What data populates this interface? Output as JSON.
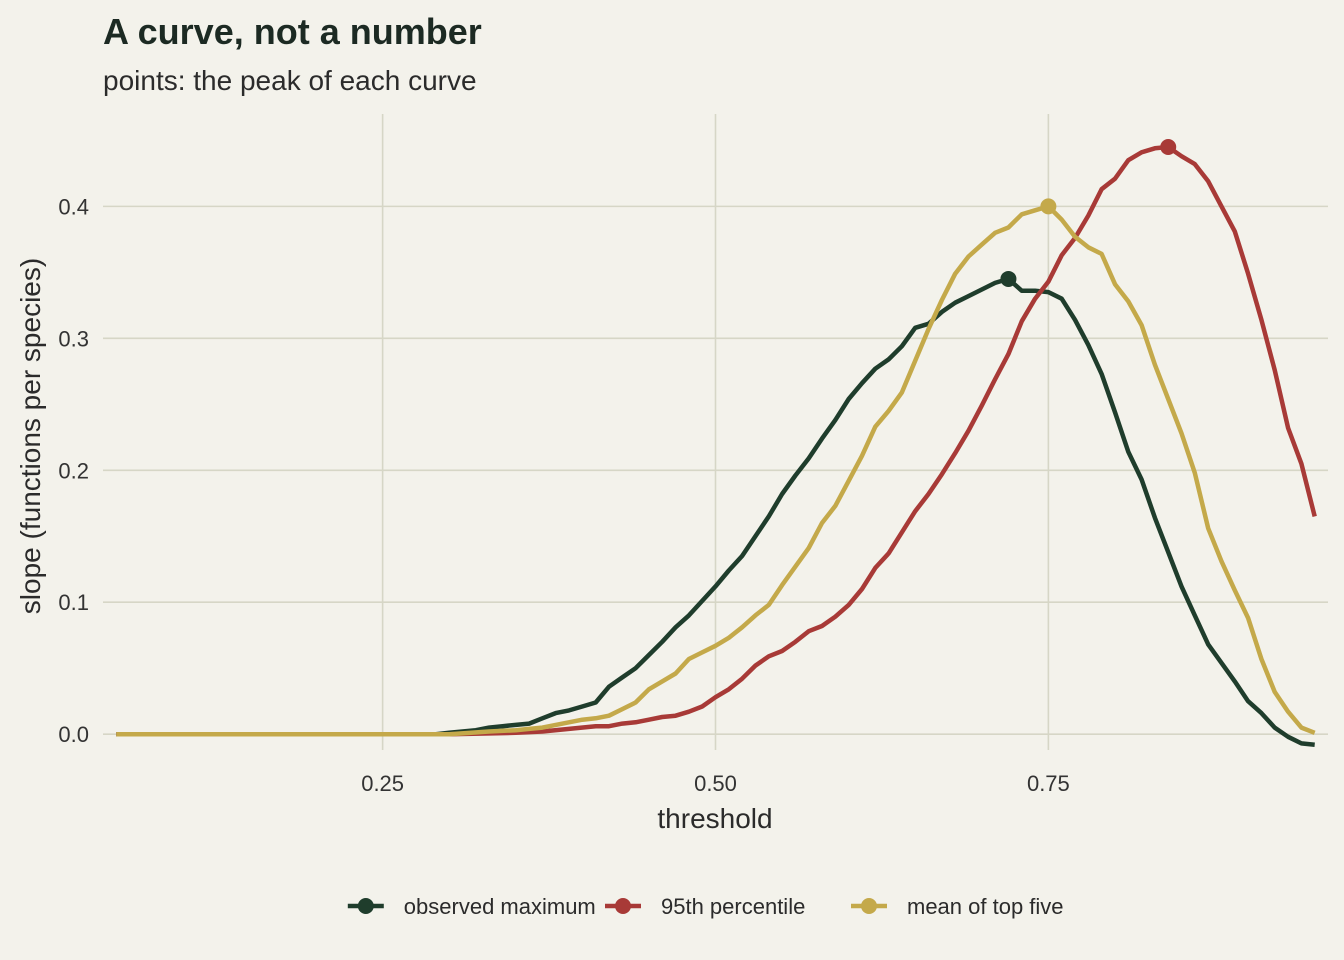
{
  "chart_data": {
    "type": "line",
    "title": "A curve, not a number",
    "subtitle": "points: the peak of each curve",
    "xlabel": "threshold",
    "ylabel": "slope (functions per species)",
    "xlim": [
      0.04,
      0.96
    ],
    "ylim": [
      -0.012,
      0.47
    ],
    "x_ticks": [
      0.25,
      0.5,
      0.75
    ],
    "x_tick_labels": [
      "0.25",
      "0.50",
      "0.75"
    ],
    "y_ticks": [
      0.0,
      0.1,
      0.2,
      0.3,
      0.4
    ],
    "y_tick_labels": [
      "0.0",
      "0.1",
      "0.2",
      "0.3",
      "0.4"
    ],
    "grid": true,
    "legend_position": "bottom",
    "series": [
      {
        "name": "observed maximum",
        "color": "#1f3d2c",
        "peak": [
          0.72,
          0.345
        ],
        "points": [
          [
            0.05,
            0
          ],
          [
            0.29,
            0
          ],
          [
            0.3,
            0.001
          ],
          [
            0.31,
            0.002
          ],
          [
            0.32,
            0.003
          ],
          [
            0.33,
            0.005
          ],
          [
            0.34,
            0.006
          ],
          [
            0.35,
            0.007
          ],
          [
            0.36,
            0.008
          ],
          [
            0.37,
            0.012
          ],
          [
            0.38,
            0.016
          ],
          [
            0.39,
            0.018
          ],
          [
            0.4,
            0.021
          ],
          [
            0.41,
            0.024
          ],
          [
            0.42,
            0.036
          ],
          [
            0.43,
            0.043
          ],
          [
            0.44,
            0.05
          ],
          [
            0.45,
            0.06
          ],
          [
            0.46,
            0.07
          ],
          [
            0.47,
            0.081
          ],
          [
            0.48,
            0.09
          ],
          [
            0.49,
            0.101
          ],
          [
            0.5,
            0.112
          ],
          [
            0.51,
            0.124
          ],
          [
            0.52,
            0.135
          ],
          [
            0.53,
            0.15
          ],
          [
            0.54,
            0.165
          ],
          [
            0.55,
            0.182
          ],
          [
            0.56,
            0.196
          ],
          [
            0.57,
            0.209
          ],
          [
            0.58,
            0.224
          ],
          [
            0.59,
            0.238
          ],
          [
            0.6,
            0.254
          ],
          [
            0.61,
            0.266
          ],
          [
            0.62,
            0.277
          ],
          [
            0.63,
            0.284
          ],
          [
            0.64,
            0.294
          ],
          [
            0.65,
            0.308
          ],
          [
            0.66,
            0.311
          ],
          [
            0.67,
            0.32
          ],
          [
            0.68,
            0.327
          ],
          [
            0.69,
            0.332
          ],
          [
            0.7,
            0.337
          ],
          [
            0.71,
            0.342
          ],
          [
            0.72,
            0.345
          ],
          [
            0.73,
            0.336
          ],
          [
            0.74,
            0.336
          ],
          [
            0.75,
            0.335
          ],
          [
            0.76,
            0.33
          ],
          [
            0.77,
            0.314
          ],
          [
            0.78,
            0.295
          ],
          [
            0.79,
            0.273
          ],
          [
            0.8,
            0.244
          ],
          [
            0.81,
            0.214
          ],
          [
            0.82,
            0.193
          ],
          [
            0.83,
            0.164
          ],
          [
            0.84,
            0.138
          ],
          [
            0.85,
            0.112
          ],
          [
            0.86,
            0.09
          ],
          [
            0.87,
            0.068
          ],
          [
            0.88,
            0.054
          ],
          [
            0.89,
            0.04
          ],
          [
            0.9,
            0.025
          ],
          [
            0.91,
            0.016
          ],
          [
            0.92,
            0.005
          ],
          [
            0.93,
            -0.002
          ],
          [
            0.94,
            -0.007
          ],
          [
            0.95,
            -0.008
          ]
        ]
      },
      {
        "name": "95th percentile",
        "color": "#a83a37",
        "peak": [
          0.84,
          0.445
        ],
        "points": [
          [
            0.05,
            0
          ],
          [
            0.3,
            0
          ],
          [
            0.35,
            0.001
          ],
          [
            0.37,
            0.002
          ],
          [
            0.39,
            0.004
          ],
          [
            0.41,
            0.006
          ],
          [
            0.42,
            0.006
          ],
          [
            0.43,
            0.008
          ],
          [
            0.44,
            0.009
          ],
          [
            0.45,
            0.011
          ],
          [
            0.46,
            0.013
          ],
          [
            0.47,
            0.014
          ],
          [
            0.48,
            0.017
          ],
          [
            0.49,
            0.021
          ],
          [
            0.5,
            0.028
          ],
          [
            0.51,
            0.034
          ],
          [
            0.52,
            0.042
          ],
          [
            0.53,
            0.052
          ],
          [
            0.54,
            0.059
          ],
          [
            0.55,
            0.063
          ],
          [
            0.56,
            0.07
          ],
          [
            0.57,
            0.078
          ],
          [
            0.58,
            0.082
          ],
          [
            0.59,
            0.089
          ],
          [
            0.6,
            0.098
          ],
          [
            0.61,
            0.11
          ],
          [
            0.62,
            0.126
          ],
          [
            0.63,
            0.137
          ],
          [
            0.64,
            0.153
          ],
          [
            0.65,
            0.169
          ],
          [
            0.66,
            0.182
          ],
          [
            0.67,
            0.197
          ],
          [
            0.68,
            0.213
          ],
          [
            0.69,
            0.23
          ],
          [
            0.7,
            0.249
          ],
          [
            0.71,
            0.269
          ],
          [
            0.72,
            0.288
          ],
          [
            0.73,
            0.313
          ],
          [
            0.74,
            0.33
          ],
          [
            0.75,
            0.343
          ],
          [
            0.76,
            0.363
          ],
          [
            0.77,
            0.376
          ],
          [
            0.78,
            0.393
          ],
          [
            0.79,
            0.413
          ],
          [
            0.8,
            0.421
          ],
          [
            0.81,
            0.435
          ],
          [
            0.82,
            0.441
          ],
          [
            0.83,
            0.444
          ],
          [
            0.84,
            0.445
          ],
          [
            0.85,
            0.438
          ],
          [
            0.86,
            0.432
          ],
          [
            0.87,
            0.419
          ],
          [
            0.88,
            0.4
          ],
          [
            0.89,
            0.381
          ],
          [
            0.9,
            0.349
          ],
          [
            0.91,
            0.314
          ],
          [
            0.92,
            0.276
          ],
          [
            0.93,
            0.232
          ],
          [
            0.94,
            0.205
          ],
          [
            0.95,
            0.165
          ]
        ]
      },
      {
        "name": "mean of top five",
        "color": "#c4a94a",
        "peak": [
          0.75,
          0.4
        ],
        "points": [
          [
            0.05,
            0
          ],
          [
            0.3,
            0
          ],
          [
            0.33,
            0.002
          ],
          [
            0.35,
            0.003
          ],
          [
            0.36,
            0.004
          ],
          [
            0.37,
            0.005
          ],
          [
            0.38,
            0.007
          ],
          [
            0.39,
            0.009
          ],
          [
            0.4,
            0.011
          ],
          [
            0.41,
            0.012
          ],
          [
            0.42,
            0.014
          ],
          [
            0.43,
            0.019
          ],
          [
            0.44,
            0.024
          ],
          [
            0.45,
            0.034
          ],
          [
            0.46,
            0.04
          ],
          [
            0.47,
            0.046
          ],
          [
            0.48,
            0.057
          ],
          [
            0.49,
            0.062
          ],
          [
            0.5,
            0.067
          ],
          [
            0.51,
            0.073
          ],
          [
            0.52,
            0.081
          ],
          [
            0.53,
            0.09
          ],
          [
            0.54,
            0.098
          ],
          [
            0.55,
            0.113
          ],
          [
            0.56,
            0.127
          ],
          [
            0.57,
            0.141
          ],
          [
            0.58,
            0.16
          ],
          [
            0.59,
            0.173
          ],
          [
            0.6,
            0.192
          ],
          [
            0.61,
            0.211
          ],
          [
            0.62,
            0.233
          ],
          [
            0.63,
            0.245
          ],
          [
            0.64,
            0.259
          ],
          [
            0.65,
            0.283
          ],
          [
            0.66,
            0.307
          ],
          [
            0.67,
            0.329
          ],
          [
            0.68,
            0.349
          ],
          [
            0.69,
            0.362
          ],
          [
            0.7,
            0.371
          ],
          [
            0.71,
            0.38
          ],
          [
            0.72,
            0.384
          ],
          [
            0.73,
            0.394
          ],
          [
            0.74,
            0.397
          ],
          [
            0.75,
            0.4
          ],
          [
            0.76,
            0.39
          ],
          [
            0.77,
            0.377
          ],
          [
            0.78,
            0.369
          ],
          [
            0.79,
            0.364
          ],
          [
            0.8,
            0.341
          ],
          [
            0.81,
            0.328
          ],
          [
            0.82,
            0.31
          ],
          [
            0.83,
            0.28
          ],
          [
            0.84,
            0.254
          ],
          [
            0.85,
            0.228
          ],
          [
            0.86,
            0.198
          ],
          [
            0.87,
            0.156
          ],
          [
            0.88,
            0.131
          ],
          [
            0.89,
            0.109
          ],
          [
            0.9,
            0.088
          ],
          [
            0.91,
            0.057
          ],
          [
            0.92,
            0.032
          ],
          [
            0.93,
            0.017
          ],
          [
            0.94,
            0.005
          ],
          [
            0.95,
            0.001
          ]
        ]
      }
    ]
  }
}
